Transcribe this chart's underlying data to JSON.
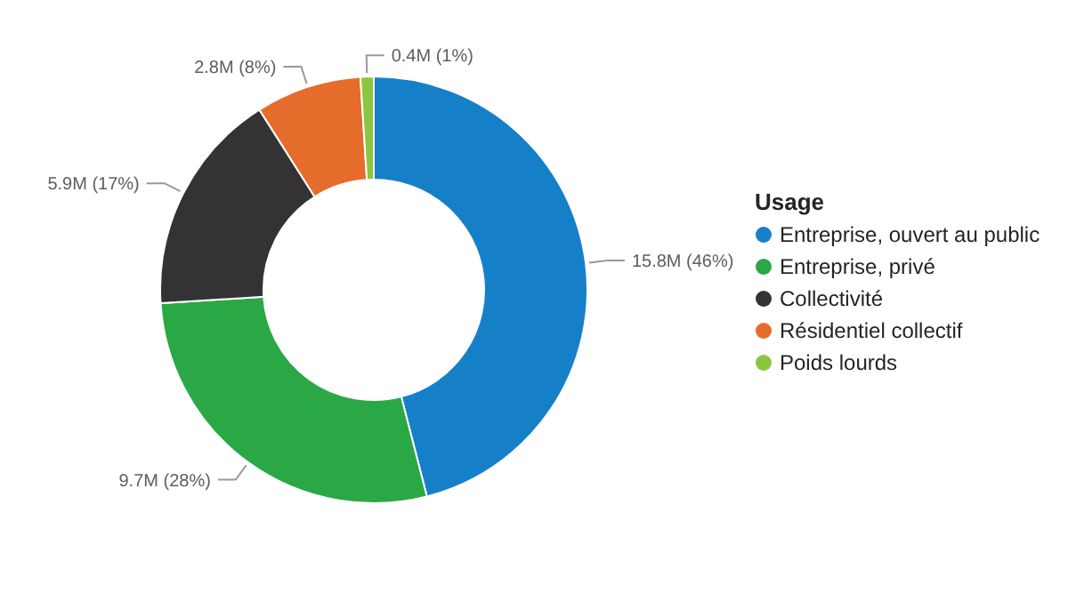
{
  "chart_data": {
    "type": "donut",
    "legend_title": "Usage",
    "legend": "right",
    "categories": [
      "Entreprise, ouvert au public",
      "Entreprise, privé",
      "Collectivité",
      "Résidentiel collectif",
      "Poids lourds"
    ],
    "values": [
      46,
      28,
      17,
      8,
      1
    ],
    "value_labels": [
      "15.8M (46%)",
      "9.7M (28%)",
      "5.9M (17%)",
      "2.8M (8%)",
      "0.4M (1%)"
    ],
    "colors": [
      "#1580c8",
      "#2aa845",
      "#333333",
      "#e66c2c",
      "#8cc63f"
    ]
  }
}
